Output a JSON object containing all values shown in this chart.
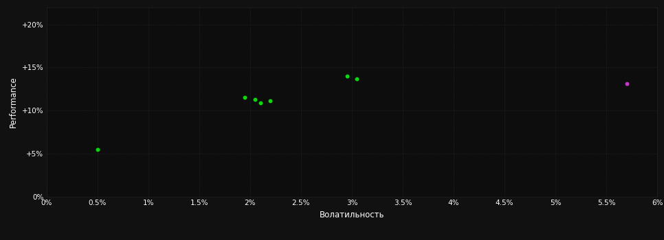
{
  "background_color": "#111111",
  "plot_bg_color": "#0d0d0d",
  "grid_color": "#2a2a2a",
  "text_color": "#ffffff",
  "xlabel": "Волатильность",
  "ylabel": "Performance",
  "xlim": [
    0.0,
    0.06
  ],
  "ylim": [
    0.0,
    0.22
  ],
  "xticks": [
    0.0,
    0.005,
    0.01,
    0.015,
    0.02,
    0.025,
    0.03,
    0.035,
    0.04,
    0.045,
    0.05,
    0.055,
    0.06
  ],
  "xtick_labels": [
    "0%",
    "0.5%",
    "1%",
    "1.5%",
    "2%",
    "2.5%",
    "3%",
    "3.5%",
    "4%",
    "4.5%",
    "5%",
    "5.5%",
    "6%"
  ],
  "yticks": [
    0.0,
    0.05,
    0.1,
    0.15,
    0.2
  ],
  "ytick_labels": [
    "0%",
    "+5%",
    "+10%",
    "+15%",
    "+20%"
  ],
  "green_points": [
    [
      0.005,
      0.055
    ],
    [
      0.0195,
      0.115
    ],
    [
      0.0205,
      0.113
    ],
    [
      0.021,
      0.109
    ],
    [
      0.022,
      0.111
    ],
    [
      0.0295,
      0.14
    ],
    [
      0.0305,
      0.137
    ]
  ],
  "magenta_points": [
    [
      0.057,
      0.131
    ]
  ],
  "green_color": "#00dd00",
  "magenta_color": "#cc33cc",
  "marker_size": 18
}
